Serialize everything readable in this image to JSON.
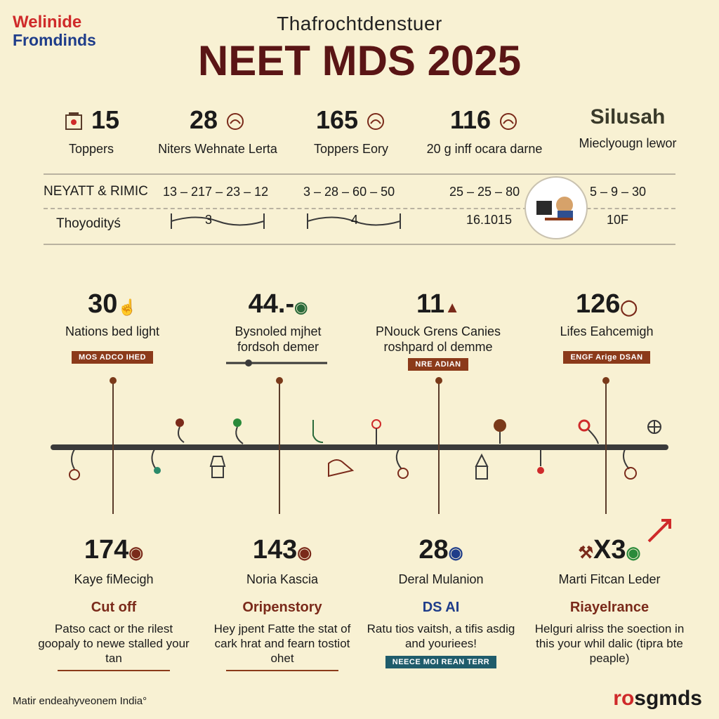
{
  "brand": {
    "line1": "Welinide",
    "line2": "Fromdinds"
  },
  "supertitle": "Thafrochtdenstuer",
  "title": "NEET MDS 2025",
  "top_stats": [
    {
      "value": "15",
      "label": "Toppers",
      "icon": "building-icon"
    },
    {
      "value": "28",
      "label": "Niters Wehnate Lerta",
      "icon": "badge-icon"
    },
    {
      "value": "165",
      "label": "Toppers Eory",
      "icon": "badge-icon"
    },
    {
      "value": "116",
      "label": "20 g inff ocara darne",
      "icon": "badge-icon"
    },
    {
      "value": "Silusah",
      "label": "Mieclyougn lewor",
      "icon": "none"
    }
  ],
  "table_rows": [
    {
      "label": "NEYATT & RIMIC",
      "values": [
        "13 – 217 – 23 – 12",
        "3 – 28 – 60 – 50",
        "25 – 25 – 80",
        "5 – 9 – 30"
      ]
    },
    {
      "label": "Thoyodityś",
      "values": [
        "3",
        "4",
        "16.1015",
        "10F"
      ]
    }
  ],
  "milestones": [
    {
      "value": "30",
      "caption1": "Nations bed light",
      "caption2": "",
      "tag": "MOS ADCO IHED",
      "tag_color": "#8b3a1a"
    },
    {
      "value": "44.-",
      "caption1": "Bysnoled mjhet",
      "caption2": "fordsoh demer",
      "tag": "",
      "tag_color": ""
    },
    {
      "value": "11",
      "caption1": "PNouck Grens Canies",
      "caption2": "roshpard ol demme",
      "tag": "NRE ADIAN",
      "tag_color": "#8b3a1a"
    },
    {
      "value": "126",
      "caption1": "Lifes Eahcemigh",
      "caption2": "",
      "tag": "ENGF Arige DSAN",
      "tag_color": "#8b3a1a"
    }
  ],
  "bottom_cols": [
    {
      "value": "174",
      "sub": "Kaye fiMecigh",
      "head": "Cut off",
      "desc": "Patso cact or the rilest goopaly to newe stalled your tan"
    },
    {
      "value": "143",
      "sub": "Noria Kascia",
      "head": "Oripenstory",
      "desc": "Hey jpent Fatte the stat of cark hrat and fearn tostiot ohet"
    },
    {
      "value": "28",
      "sub": "Deral Mulanion",
      "head": "DS AI",
      "desc": "Ratu tios vaitsh, a tifis asdig and youriees!",
      "tag": "NEECE MOI REAN TERR"
    },
    {
      "value": "X3",
      "sub": "Marti Fitcan Leder",
      "head": "Riayelrance",
      "desc": "Helguri alriss the soection in this your whil dalic (tipra bte peaple)"
    }
  ],
  "footer": {
    "left": "Matir endeahyveonem India°",
    "right_part1": "ro",
    "right_part2": "sgmds"
  },
  "colors": {
    "background": "#f8f1d3",
    "title": "#5a1515",
    "accent_red": "#cf2a2a",
    "accent_blue": "#1f3d8a"
  }
}
